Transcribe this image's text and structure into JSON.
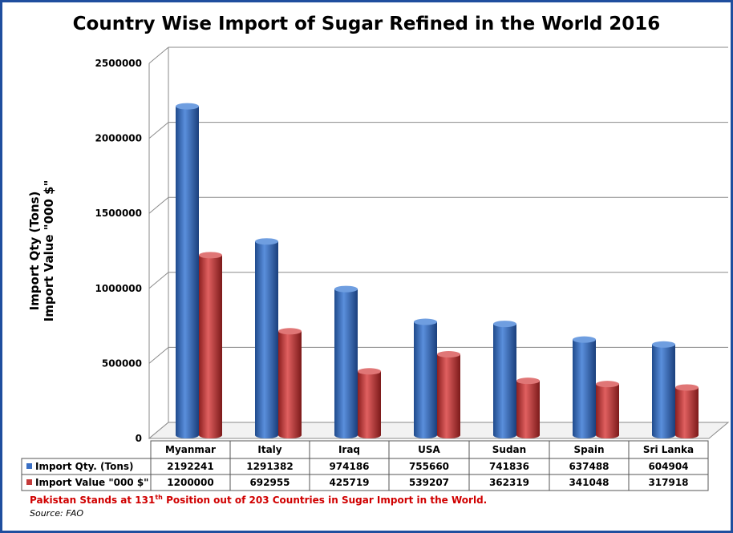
{
  "chart_data": {
    "type": "bar",
    "title": "Country Wise Import of Sugar Refined in the World 2016",
    "ylabel_line1": "Import Qty (Tons)",
    "ylabel_line2": "Import Value \"000 $\"",
    "ylim": [
      0,
      2500000
    ],
    "yticks": [
      "0",
      "500000",
      "1000000",
      "1500000",
      "2000000",
      "2500000"
    ],
    "categories": [
      "Myanmar",
      "Italy",
      "Iraq",
      "USA",
      "Sudan",
      "Spain",
      "Sri Lanka"
    ],
    "series": [
      {
        "name": "Import Qty. (Tons)",
        "color": "#3a6fc4",
        "values": [
          2192241,
          1291382,
          974186,
          755660,
          741836,
          637488,
          604904
        ]
      },
      {
        "name": "Import Value \"000 $\"",
        "color": "#c43a3a",
        "values": [
          1200000,
          692955,
          425719,
          539207,
          362319,
          341048,
          317918
        ]
      }
    ],
    "legend_placement": "data-table",
    "grid": true
  },
  "footnote": {
    "before": "Pakistan Stands at 131",
    "sup": "th",
    "after": " Position out of 203  Countries in Sugar Import in the World."
  },
  "source": "Source: FAO"
}
